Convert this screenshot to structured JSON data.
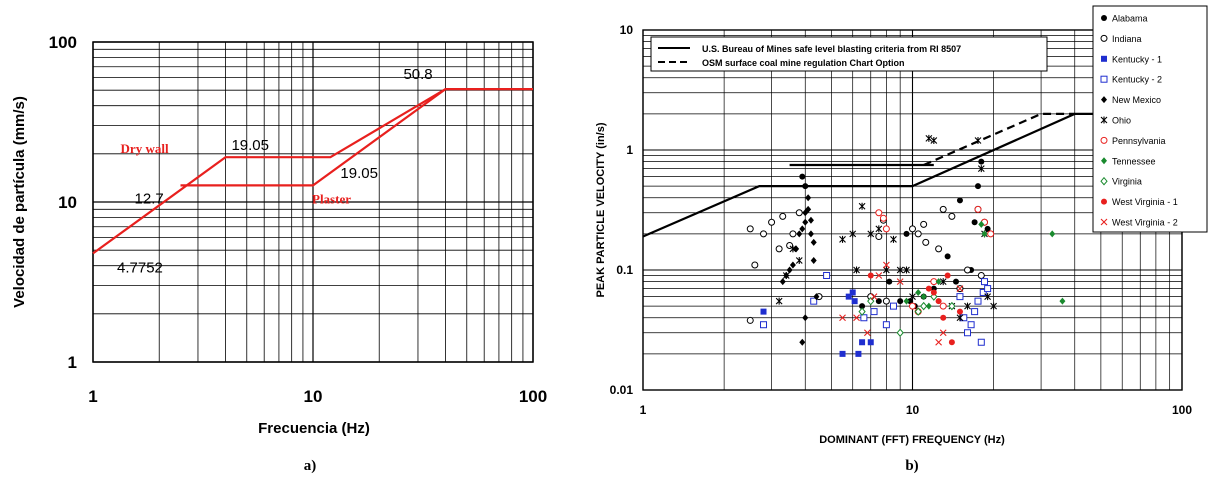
{
  "chart_data": [
    {
      "type": "line",
      "xlabel": "Frecuencia (Hz)",
      "ylabel": "Velocidad de partícula (mm/s)",
      "x_scale": "log",
      "y_scale": "log",
      "xlim": [
        1,
        100
      ],
      "ylim": [
        1,
        100
      ],
      "x_ticks": [
        "1",
        "10",
        "100"
      ],
      "y_ticks": [
        "1",
        "10",
        "100"
      ],
      "grid": true,
      "caption": "a)",
      "series": [
        {
          "name": "Dry wall",
          "color": "#e8201e",
          "x": [
            1,
            4,
            12,
            40,
            100
          ],
          "y": [
            4.7752,
            19.05,
            19.05,
            50.8,
            50.8
          ]
        },
        {
          "name": "Plaster",
          "color": "#e8201e",
          "x": [
            2.5,
            10,
            40
          ],
          "y": [
            12.7,
            12.7,
            50.8
          ]
        }
      ],
      "annotations": [
        {
          "text": "Dry wall",
          "x": 2.5,
          "y": 19.05,
          "style": "serif-red"
        },
        {
          "text": "19.05",
          "x": 4,
          "y": 19.05,
          "style": "sans-black"
        },
        {
          "text": "12.7",
          "x": 2.5,
          "y": 12.7,
          "style": "sans-black"
        },
        {
          "text": "19.05",
          "x": 12,
          "y": 19.05,
          "style": "sans-black"
        },
        {
          "text": "Plaster",
          "x": 10,
          "y": 12.7,
          "style": "serif-red"
        },
        {
          "text": "50.8",
          "x": 40,
          "y": 50.8,
          "style": "sans-black"
        },
        {
          "text": "4.7752",
          "x": 1,
          "y": 4.7752,
          "style": "sans-black"
        }
      ]
    },
    {
      "type": "scatter",
      "xlabel": "DOMINANT (FFT) FREQUENCY  (Hz)",
      "ylabel": "PEAK PARTICLE VELOCITY  (in/s)",
      "x_scale": "log",
      "y_scale": "log",
      "xlim": [
        1,
        100
      ],
      "ylim": [
        0.01,
        10
      ],
      "x_ticks": [
        "1",
        "10",
        "100"
      ],
      "y_ticks": [
        "0.01",
        "0.1",
        "1",
        "10"
      ],
      "grid": true,
      "caption": "b)",
      "criteria_lines": [
        {
          "label": "U.S. Bureau of Mines safe level blasting criteria from RI 8507",
          "style": "solid",
          "segments": [
            {
              "x": [
                1,
                2.7,
                10,
                40,
                100
              ],
              "y": [
                0.19,
                0.5,
                0.5,
                2,
                2
              ]
            },
            {
              "x": [
                3.5,
                12
              ],
              "y": [
                0.75,
                0.75
              ]
            }
          ]
        },
        {
          "label": "OSM surface coal mine regulation Chart Option",
          "style": "dashed",
          "segments": [
            {
              "x": [
                11,
                30,
                40
              ],
              "y": [
                0.75,
                2,
                2
              ]
            }
          ]
        }
      ],
      "series": [
        {
          "name": "Alabama",
          "marker": "filled-circle",
          "color": "#000000",
          "x": [
            3.9,
            4.0,
            8.2,
            9.0,
            9.8,
            10.2,
            11.0,
            12.0,
            13.5,
            14.5,
            15.0,
            16.5,
            17.0,
            17.5,
            18.0,
            19.0,
            9.5,
            6.5,
            7.5
          ],
          "y": [
            0.6,
            0.5,
            0.08,
            0.055,
            0.055,
            0.05,
            0.06,
            0.07,
            0.13,
            0.08,
            0.38,
            0.1,
            0.25,
            0.5,
            0.8,
            0.22,
            0.2,
            0.05,
            0.055
          ]
        },
        {
          "name": "Indiana",
          "marker": "open-circle",
          "color": "#000000",
          "x": [
            2.5,
            2.6,
            2.8,
            3.0,
            3.2,
            3.3,
            3.5,
            3.6,
            3.8,
            4.5,
            7.0,
            7.5,
            7.8,
            8.0,
            10.0,
            10.5,
            11.0,
            11.2,
            12.5,
            13.0,
            14.0,
            15.0,
            16.0,
            17.5,
            18.0,
            18.5,
            2.5
          ],
          "y": [
            0.22,
            0.11,
            0.2,
            0.25,
            0.15,
            0.28,
            0.16,
            0.2,
            0.3,
            0.06,
            0.06,
            0.19,
            0.26,
            0.055,
            0.22,
            0.2,
            0.24,
            0.17,
            0.15,
            0.32,
            0.28,
            0.07,
            0.1,
            0.32,
            0.09,
            0.25,
            0.038
          ]
        },
        {
          "name": "Kentucky - 1",
          "marker": "filled-square",
          "color": "#1f2ecf",
          "x": [
            2.8,
            5.5,
            5.8,
            6.0,
            6.1,
            6.3,
            6.5,
            7.0
          ],
          "y": [
            0.045,
            0.02,
            0.06,
            0.065,
            0.055,
            0.02,
            0.025,
            0.025
          ]
        },
        {
          "name": "Kentucky - 2",
          "marker": "open-square",
          "color": "#1f2ecf",
          "x": [
            2.8,
            4.3,
            4.8,
            6.6,
            7.2,
            8.0,
            8.5,
            15.0,
            15.5,
            16.0,
            16.5,
            17.0,
            17.5,
            18.0,
            18.3,
            18.5,
            19.0
          ],
          "y": [
            0.035,
            0.055,
            0.09,
            0.04,
            0.045,
            0.035,
            0.05,
            0.06,
            0.04,
            0.03,
            0.035,
            0.045,
            0.055,
            0.025,
            0.065,
            0.08,
            0.07
          ]
        },
        {
          "name": "New Mexico",
          "marker": "filled-diamond",
          "color": "#000000",
          "x": [
            3.3,
            3.4,
            3.5,
            3.6,
            3.7,
            3.8,
            3.9,
            4.0,
            4.0,
            4.1,
            4.1,
            4.2,
            4.2,
            4.3,
            4.3,
            4.4,
            4.0,
            3.9
          ],
          "y": [
            0.08,
            0.09,
            0.1,
            0.11,
            0.15,
            0.2,
            0.22,
            0.25,
            0.3,
            0.32,
            0.4,
            0.26,
            0.2,
            0.17,
            0.12,
            0.06,
            0.04,
            0.025
          ]
        },
        {
          "name": "Ohio",
          "marker": "asterisk",
          "color": "#000000",
          "x": [
            3.2,
            3.4,
            3.6,
            3.8,
            5.5,
            6.0,
            6.2,
            6.5,
            7.0,
            7.5,
            8.0,
            8.5,
            9.0,
            9.5,
            10.0,
            11.5,
            12.0,
            13.0,
            14.0,
            15.0,
            16.0,
            17.5,
            18.0,
            18.5,
            19.0,
            20.0
          ],
          "y": [
            0.055,
            0.09,
            0.15,
            0.12,
            0.18,
            0.2,
            0.1,
            0.34,
            0.2,
            0.22,
            0.1,
            0.18,
            0.1,
            0.1,
            0.06,
            1.25,
            1.2,
            0.08,
            0.05,
            0.04,
            0.05,
            1.2,
            0.7,
            0.2,
            0.06,
            0.05
          ]
        },
        {
          "name": "Pennsylvania",
          "marker": "open-circle",
          "color": "#e8201e",
          "x": [
            7.5,
            7.8,
            8.0,
            10.0,
            10.5,
            12.0,
            13.0,
            17.5,
            18.5,
            19.5
          ],
          "y": [
            0.3,
            0.27,
            0.22,
            0.05,
            0.045,
            0.08,
            0.05,
            0.32,
            0.25,
            0.2
          ]
        },
        {
          "name": "Tennessee",
          "marker": "filled-diamond",
          "color": "#1a8a2e",
          "x": [
            9.5,
            10.5,
            11.0,
            11.5,
            12.5,
            18.0,
            18.5,
            33.0,
            36.0
          ],
          "y": [
            0.055,
            0.065,
            0.06,
            0.05,
            0.08,
            0.24,
            0.2,
            0.2,
            0.055
          ]
        },
        {
          "name": "Virginia",
          "marker": "open-diamond",
          "color": "#1a8a2e",
          "x": [
            6.5,
            7.0,
            9.0,
            10.5,
            11.0,
            12.0,
            14.0
          ],
          "y": [
            0.045,
            0.055,
            0.03,
            0.045,
            0.05,
            0.06,
            0.05
          ]
        },
        {
          "name": "West Virginia - 1",
          "marker": "filled-circle",
          "color": "#e8201e",
          "x": [
            7.0,
            11.5,
            12.0,
            12.5,
            13.0,
            13.5,
            14.0,
            15.0
          ],
          "y": [
            0.09,
            0.07,
            0.065,
            0.055,
            0.04,
            0.09,
            0.025,
            0.045
          ]
        },
        {
          "name": "West Virginia - 2",
          "marker": "cross",
          "color": "#e8201e",
          "x": [
            5.5,
            6.2,
            6.8,
            7.2,
            7.5,
            8.0,
            9.0,
            12.5,
            13.0,
            15.0
          ],
          "y": [
            0.04,
            0.04,
            0.03,
            0.06,
            0.09,
            0.11,
            0.08,
            0.025,
            0.03,
            0.07
          ]
        }
      ]
    }
  ]
}
